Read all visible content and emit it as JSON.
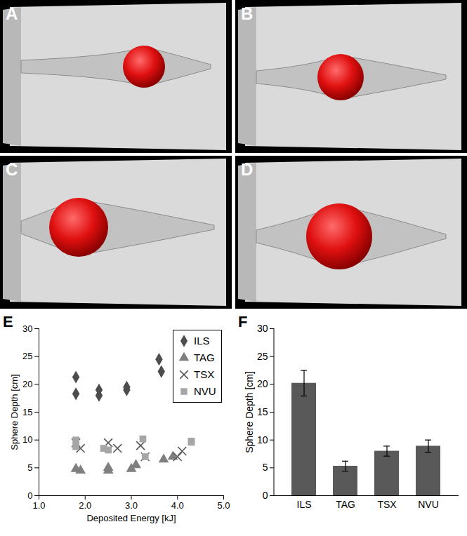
{
  "panels": {
    "labels": [
      "A",
      "B",
      "C",
      "D"
    ]
  },
  "chart_data": [
    {
      "type": "scatter",
      "title": "E",
      "xlabel": "Deposited Energy [kJ]",
      "ylabel": "Sphere Depth [cm]",
      "xlim": [
        1,
        5
      ],
      "xticks": [
        1,
        2,
        3,
        4,
        5
      ],
      "ylim": [
        0,
        30
      ],
      "yticks": [
        0,
        5,
        10,
        15,
        20,
        25,
        30
      ],
      "legend": "top-right",
      "series": [
        {
          "name": "ILS",
          "color": "#4d4d4d",
          "marker": "diamond",
          "x": [
            1.8,
            1.8,
            2.3,
            2.3,
            2.9,
            2.9,
            3.6,
            3.65
          ],
          "values": [
            21.3,
            18.3,
            19,
            18,
            19.5,
            19,
            24.5,
            22.3
          ]
        },
        {
          "name": "TAG",
          "color": "#7f7f7f",
          "marker": "triangle",
          "x": [
            1.8,
            1.9,
            2.5,
            2.5,
            3.0,
            3.1,
            3.7,
            3.9
          ],
          "values": [
            4.8,
            4.5,
            4.5,
            5,
            4.8,
            5.5,
            6.5,
            7
          ]
        },
        {
          "name": "TSX",
          "color": "#595959",
          "marker": "x",
          "x": [
            1.8,
            1.9,
            2.5,
            2.7,
            3.2,
            3.3,
            4.0,
            4.1
          ],
          "values": [
            9.5,
            8.5,
            9.5,
            8.5,
            9,
            7,
            7,
            8
          ]
        },
        {
          "name": "NVU",
          "color": "#a6a6a6",
          "marker": "square",
          "x": [
            1.8,
            1.8,
            2.4,
            2.5,
            3.25,
            3.3,
            4.3,
            4.3
          ],
          "values": [
            10,
            8.8,
            8.5,
            8.2,
            10.2,
            7,
            9.8,
            9.6
          ]
        }
      ]
    },
    {
      "type": "bar",
      "title": "F",
      "ylabel": "Sphere Depth [cm]",
      "categories": [
        "ILS",
        "TAG",
        "TSX",
        "NVU"
      ],
      "values": [
        20.2,
        5.3,
        8.0,
        8.9
      ],
      "errors": [
        2.3,
        0.9,
        0.9,
        1.1
      ],
      "color": "#595959",
      "ylim": [
        0,
        30
      ],
      "yticks": [
        0,
        5,
        10,
        15,
        20,
        25,
        30
      ]
    }
  ]
}
